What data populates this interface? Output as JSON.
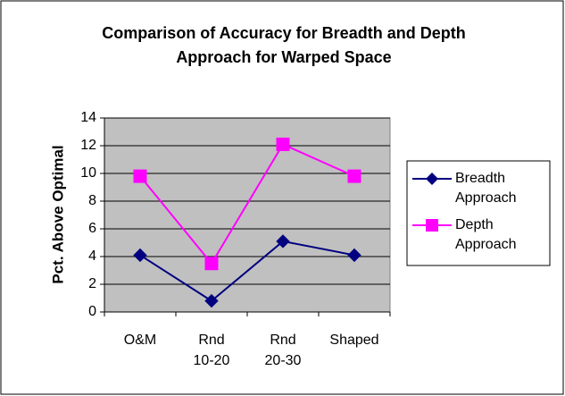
{
  "chart_data": {
    "type": "line",
    "title": [
      "Comparison of Accuracy for Breadth and Depth",
      "Approach for Warped Space"
    ],
    "y_label": "Pct. Above Optimal",
    "categories": [
      "O&M",
      "Rnd 10-20",
      "Rnd 20-30",
      "Shaped"
    ],
    "series": [
      {
        "name": "Breadth Approach",
        "color": "#000080",
        "marker": "diamond",
        "values": [
          4.1,
          0.8,
          5.1,
          4.1
        ]
      },
      {
        "name": "Depth Approach",
        "color": "#ff00ff",
        "marker": "square",
        "values": [
          9.8,
          3.5,
          12.1,
          9.8
        ]
      }
    ],
    "ylim": [
      0,
      14
    ],
    "yticks": [
      0,
      2,
      4,
      6,
      8,
      10,
      12,
      14
    ],
    "grid": true,
    "legend": "right",
    "plot_background": "#c0c0c0"
  }
}
